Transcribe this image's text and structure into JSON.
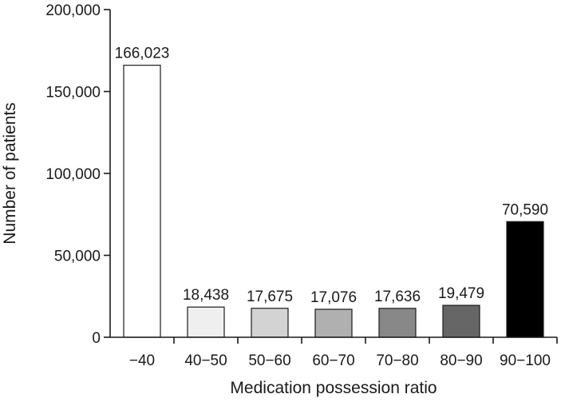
{
  "chart_data": {
    "type": "bar",
    "categories": [
      "−40",
      "40−50",
      "50−60",
      "60−70",
      "70−80",
      "80−90",
      "90−100"
    ],
    "values": [
      166023,
      18438,
      17675,
      17076,
      17636,
      19479,
      70590
    ],
    "data_labels": [
      "166,023",
      "18,438",
      "17,675",
      "17,076",
      "17,636",
      "19,479",
      "70,590"
    ],
    "bar_colors": [
      "#ffffff",
      "#efefef",
      "#d3d3d3",
      "#b0b0b0",
      "#888888",
      "#666666",
      "#000000"
    ],
    "xlabel": "Medication possession ratio",
    "ylabel": "Number of patients",
    "ylim": [
      0,
      200000
    ],
    "yticks": [
      0,
      50000,
      100000,
      150000,
      200000
    ],
    "ytick_labels": [
      "0",
      "50,000",
      "100,000",
      "150,000",
      "200,000"
    ],
    "grid": false,
    "legend": "none"
  }
}
